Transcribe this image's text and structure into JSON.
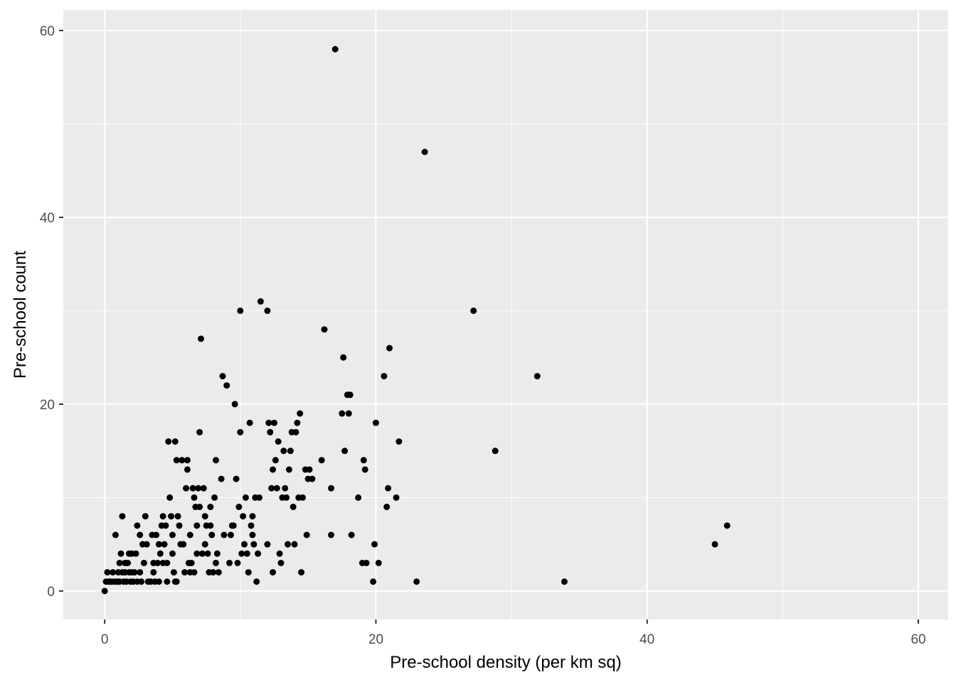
{
  "chart_data": {
    "type": "scatter",
    "title": "",
    "xlabel": "Pre-school density (per km sq)",
    "ylabel": "Pre-school count",
    "xlim": [
      -3.05,
      62.2
    ],
    "ylim": [
      -3.05,
      62.2
    ],
    "x_ticks": [
      0,
      20,
      40,
      60
    ],
    "y_ticks": [
      0,
      20,
      40,
      60
    ],
    "x_tick_labels": [
      "0",
      "20",
      "40",
      "60"
    ],
    "y_tick_labels": [
      "0",
      "20",
      "40",
      "60"
    ],
    "grid": true,
    "legend": "none",
    "colors": {
      "panel": "#ebebeb",
      "grid": "#ffffff",
      "point": "#000000",
      "tick_text": "#4d4d4d",
      "tick_mark": "#333333"
    },
    "points": [
      [
        0.0,
        0
      ],
      [
        0.1,
        1
      ],
      [
        0.2,
        2
      ],
      [
        0.3,
        1
      ],
      [
        0.4,
        1
      ],
      [
        0.5,
        1
      ],
      [
        0.6,
        2
      ],
      [
        0.7,
        1
      ],
      [
        0.8,
        6
      ],
      [
        0.9,
        1
      ],
      [
        1.0,
        2
      ],
      [
        1.0,
        1
      ],
      [
        1.1,
        3
      ],
      [
        1.1,
        1
      ],
      [
        1.2,
        4
      ],
      [
        1.3,
        2
      ],
      [
        1.3,
        8
      ],
      [
        1.4,
        1
      ],
      [
        1.5,
        3
      ],
      [
        1.5,
        2
      ],
      [
        1.6,
        1
      ],
      [
        1.7,
        3
      ],
      [
        1.8,
        4
      ],
      [
        1.8,
        2
      ],
      [
        1.9,
        1
      ],
      [
        2.0,
        2
      ],
      [
        2.0,
        4
      ],
      [
        2.1,
        1
      ],
      [
        2.2,
        2
      ],
      [
        2.3,
        4
      ],
      [
        2.4,
        7
      ],
      [
        2.4,
        1
      ],
      [
        2.6,
        6
      ],
      [
        2.6,
        2
      ],
      [
        2.7,
        1
      ],
      [
        2.8,
        5
      ],
      [
        2.9,
        3
      ],
      [
        3.0,
        8
      ],
      [
        3.1,
        5
      ],
      [
        3.2,
        1
      ],
      [
        3.4,
        1
      ],
      [
        3.5,
        6
      ],
      [
        3.6,
        2
      ],
      [
        3.6,
        3
      ],
      [
        3.7,
        1
      ],
      [
        3.8,
        6
      ],
      [
        3.9,
        3
      ],
      [
        4.0,
        5
      ],
      [
        4.0,
        1
      ],
      [
        4.1,
        4
      ],
      [
        4.2,
        7
      ],
      [
        4.3,
        8
      ],
      [
        4.3,
        3
      ],
      [
        4.4,
        5
      ],
      [
        4.5,
        7
      ],
      [
        4.6,
        3
      ],
      [
        4.6,
        1
      ],
      [
        4.7,
        16
      ],
      [
        4.8,
        10
      ],
      [
        4.9,
        8
      ],
      [
        5.0,
        4
      ],
      [
        5.0,
        6
      ],
      [
        5.1,
        2
      ],
      [
        5.2,
        1
      ],
      [
        5.2,
        16
      ],
      [
        5.3,
        14
      ],
      [
        5.3,
        1
      ],
      [
        5.4,
        8
      ],
      [
        5.5,
        7
      ],
      [
        5.6,
        5
      ],
      [
        5.7,
        14
      ],
      [
        5.8,
        5
      ],
      [
        5.9,
        2
      ],
      [
        6.0,
        11
      ],
      [
        6.1,
        13
      ],
      [
        6.1,
        14
      ],
      [
        6.2,
        3
      ],
      [
        6.3,
        6
      ],
      [
        6.3,
        2
      ],
      [
        6.4,
        3
      ],
      [
        6.5,
        11
      ],
      [
        6.6,
        2
      ],
      [
        6.6,
        10
      ],
      [
        6.7,
        9
      ],
      [
        6.8,
        7
      ],
      [
        6.8,
        4
      ],
      [
        6.9,
        11
      ],
      [
        7.0,
        9
      ],
      [
        7.0,
        17
      ],
      [
        7.1,
        27
      ],
      [
        7.2,
        4
      ],
      [
        7.3,
        11
      ],
      [
        7.4,
        8
      ],
      [
        7.4,
        5
      ],
      [
        7.5,
        7
      ],
      [
        7.6,
        4
      ],
      [
        7.7,
        2
      ],
      [
        7.8,
        7
      ],
      [
        7.8,
        9
      ],
      [
        7.9,
        6
      ],
      [
        8.0,
        2
      ],
      [
        8.1,
        10
      ],
      [
        8.2,
        14
      ],
      [
        8.2,
        3
      ],
      [
        8.3,
        4
      ],
      [
        8.4,
        2
      ],
      [
        8.6,
        12
      ],
      [
        8.7,
        23
      ],
      [
        8.8,
        6
      ],
      [
        9.0,
        22
      ],
      [
        9.2,
        3
      ],
      [
        9.3,
        6
      ],
      [
        9.4,
        7
      ],
      [
        9.5,
        7
      ],
      [
        9.6,
        20
      ],
      [
        9.7,
        12
      ],
      [
        9.8,
        3
      ],
      [
        9.9,
        9
      ],
      [
        10.0,
        30
      ],
      [
        10.0,
        17
      ],
      [
        10.1,
        4
      ],
      [
        10.2,
        8
      ],
      [
        10.3,
        5
      ],
      [
        10.4,
        10
      ],
      [
        10.5,
        4
      ],
      [
        10.6,
        2
      ],
      [
        10.7,
        18
      ],
      [
        10.8,
        7
      ],
      [
        10.9,
        6
      ],
      [
        10.9,
        8
      ],
      [
        11.0,
        5
      ],
      [
        11.1,
        10
      ],
      [
        11.2,
        1
      ],
      [
        11.3,
        4
      ],
      [
        11.4,
        10
      ],
      [
        11.5,
        31
      ],
      [
        12.0,
        30
      ],
      [
        12.0,
        5
      ],
      [
        12.1,
        18
      ],
      [
        12.2,
        17
      ],
      [
        12.3,
        11
      ],
      [
        12.4,
        2
      ],
      [
        12.4,
        13
      ],
      [
        12.5,
        18
      ],
      [
        12.6,
        14
      ],
      [
        12.7,
        11
      ],
      [
        12.8,
        16
      ],
      [
        12.9,
        4
      ],
      [
        13.0,
        3
      ],
      [
        13.1,
        10
      ],
      [
        13.2,
        15
      ],
      [
        13.3,
        11
      ],
      [
        13.4,
        10
      ],
      [
        13.5,
        5
      ],
      [
        13.6,
        13
      ],
      [
        13.7,
        15
      ],
      [
        13.8,
        17
      ],
      [
        13.9,
        9
      ],
      [
        14.0,
        5
      ],
      [
        14.1,
        17
      ],
      [
        14.2,
        18
      ],
      [
        14.3,
        10
      ],
      [
        14.4,
        19
      ],
      [
        14.5,
        2
      ],
      [
        14.6,
        10
      ],
      [
        14.8,
        13
      ],
      [
        14.9,
        6
      ],
      [
        15.0,
        12
      ],
      [
        15.1,
        13
      ],
      [
        15.3,
        12
      ],
      [
        16.0,
        14
      ],
      [
        16.2,
        28
      ],
      [
        16.7,
        11
      ],
      [
        16.7,
        6
      ],
      [
        17.0,
        58
      ],
      [
        17.5,
        19
      ],
      [
        17.6,
        25
      ],
      [
        17.7,
        15
      ],
      [
        17.9,
        21
      ],
      [
        18.0,
        19
      ],
      [
        18.1,
        21
      ],
      [
        18.2,
        6
      ],
      [
        18.7,
        10
      ],
      [
        19.0,
        3
      ],
      [
        19.1,
        14
      ],
      [
        19.2,
        13
      ],
      [
        19.3,
        3
      ],
      [
        19.8,
        1
      ],
      [
        19.9,
        5
      ],
      [
        20.0,
        18
      ],
      [
        20.2,
        3
      ],
      [
        20.6,
        23
      ],
      [
        20.8,
        9
      ],
      [
        20.9,
        11
      ],
      [
        21.0,
        26
      ],
      [
        21.5,
        10
      ],
      [
        21.7,
        16
      ],
      [
        23.0,
        1
      ],
      [
        23.6,
        47
      ],
      [
        27.2,
        30
      ],
      [
        28.8,
        15
      ],
      [
        31.9,
        23
      ],
      [
        33.9,
        1
      ],
      [
        45.0,
        5
      ],
      [
        45.9,
        7
      ]
    ]
  }
}
